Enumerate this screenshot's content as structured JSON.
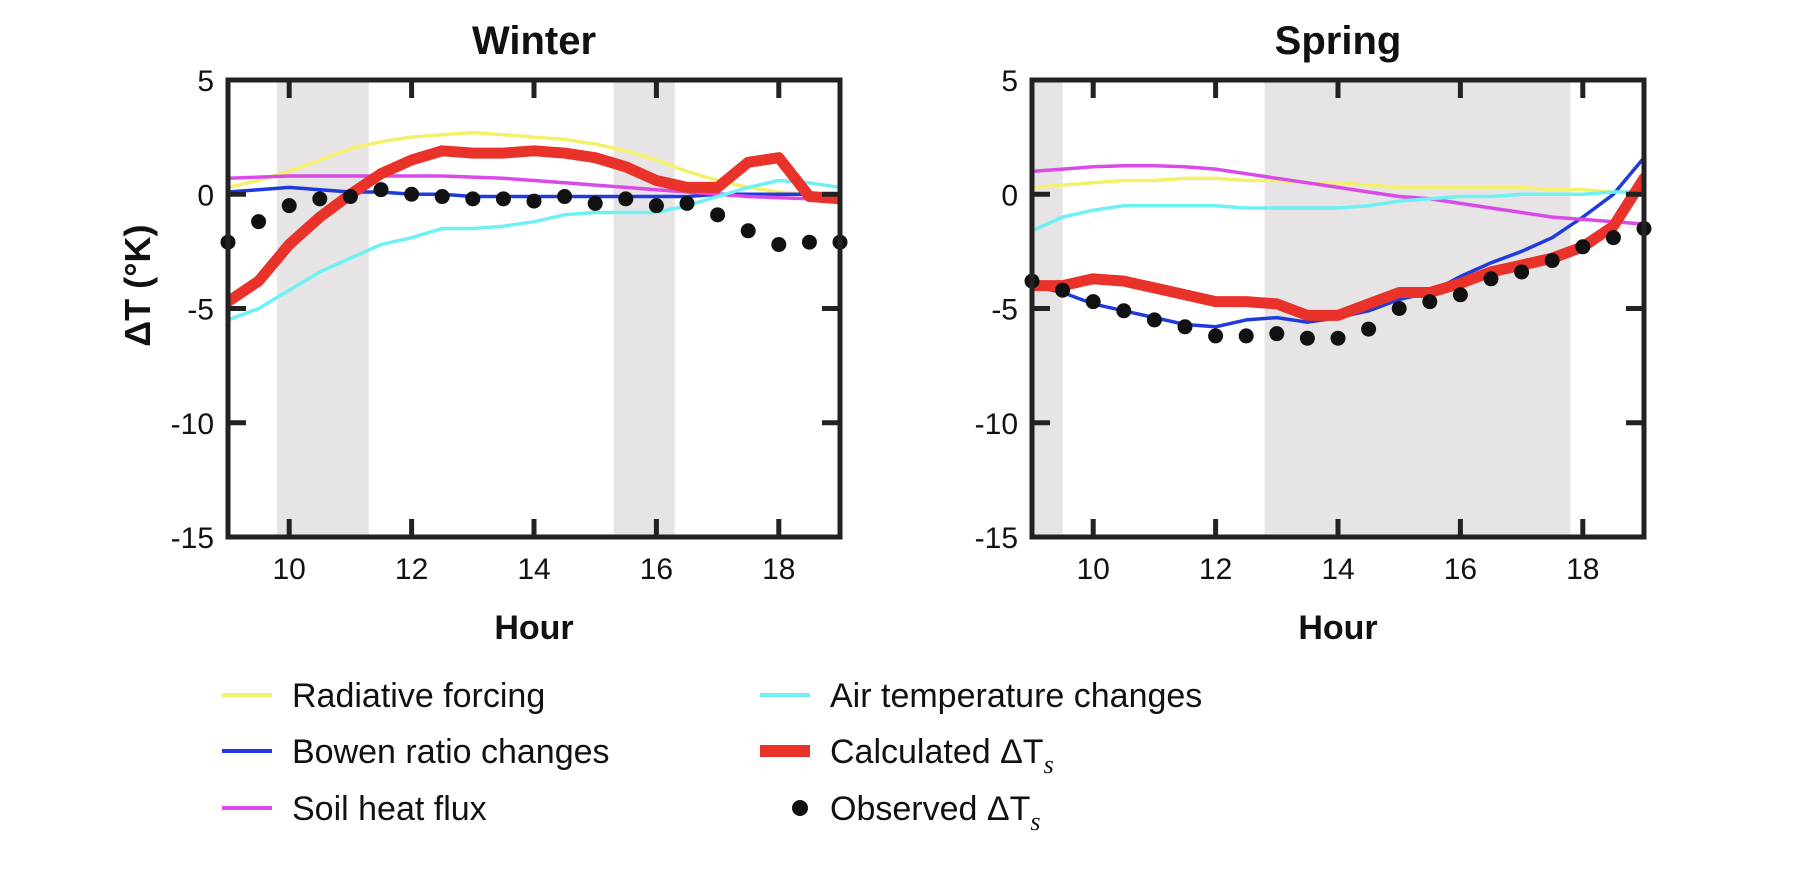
{
  "chart_data": [
    {
      "type": "line",
      "title": "Winter",
      "xlabel": "Hour",
      "ylabel": "ΔT (°K)",
      "xlim": [
        9,
        19
      ],
      "ylim": [
        -15,
        5
      ],
      "xticks": [
        10,
        12,
        14,
        16,
        18
      ],
      "yticks": [
        5,
        0,
        -5,
        -10,
        -15
      ],
      "grid": false,
      "shaded_intervals": [
        [
          9.8,
          11.3
        ],
        [
          15.3,
          16.3
        ]
      ],
      "series": [
        {
          "name": "Radiative forcing",
          "color": "#f5f06a",
          "x": [
            9,
            9.5,
            10,
            10.5,
            11,
            11.5,
            12,
            12.5,
            13,
            13.5,
            14,
            14.5,
            15,
            15.5,
            16,
            16.5,
            17,
            17.5,
            18,
            18.5,
            19
          ],
          "y": [
            0.3,
            0.6,
            1.0,
            1.5,
            2.0,
            2.3,
            2.5,
            2.6,
            2.7,
            2.6,
            2.5,
            2.4,
            2.2,
            1.9,
            1.5,
            1.0,
            0.6,
            0.3,
            0.1,
            0.0,
            -0.1
          ]
        },
        {
          "name": "Bowen ratio changes",
          "color": "#1f3be0",
          "x": [
            9,
            9.5,
            10,
            10.5,
            11,
            11.5,
            12,
            12.5,
            13,
            13.5,
            14,
            14.5,
            15,
            15.5,
            16,
            16.5,
            17,
            17.5,
            18,
            18.5,
            19
          ],
          "y": [
            0.1,
            0.2,
            0.3,
            0.2,
            0.1,
            0.1,
            0.0,
            0.0,
            -0.1,
            -0.1,
            -0.1,
            -0.1,
            -0.1,
            -0.1,
            -0.1,
            -0.1,
            0.0,
            0.0,
            0.0,
            0.0,
            0.0
          ]
        },
        {
          "name": "Soil heat flux",
          "color": "#d94ae8",
          "x": [
            9,
            9.5,
            10,
            10.5,
            11,
            11.5,
            12,
            12.5,
            13,
            13.5,
            14,
            14.5,
            15,
            15.5,
            16,
            16.5,
            17,
            17.5,
            18,
            18.5,
            19
          ],
          "y": [
            0.7,
            0.75,
            0.8,
            0.8,
            0.8,
            0.8,
            0.8,
            0.8,
            0.75,
            0.7,
            0.6,
            0.5,
            0.4,
            0.3,
            0.2,
            0.1,
            0.0,
            -0.1,
            -0.15,
            -0.2,
            -0.25
          ]
        },
        {
          "name": "Air temperature changes",
          "color": "#6ff0f5",
          "x": [
            9,
            9.5,
            10,
            10.5,
            11,
            11.5,
            12,
            12.5,
            13,
            13.5,
            14,
            14.5,
            15,
            15.5,
            16,
            16.5,
            17,
            17.5,
            18,
            18.5,
            19
          ],
          "y": [
            -5.5,
            -5.0,
            -4.2,
            -3.4,
            -2.8,
            -2.2,
            -1.9,
            -1.5,
            -1.5,
            -1.4,
            -1.2,
            -0.9,
            -0.8,
            -0.8,
            -0.8,
            -0.5,
            -0.1,
            0.3,
            0.6,
            0.5,
            0.3
          ]
        },
        {
          "name": "Calculated ΔTs",
          "color": "#e8322a",
          "x": [
            9,
            9.5,
            10,
            10.5,
            11,
            11.5,
            12,
            12.5,
            13,
            13.5,
            14,
            14.5,
            15,
            15.5,
            16,
            16.5,
            17,
            17.5,
            18,
            18.5,
            19
          ],
          "y": [
            -4.7,
            -3.8,
            -2.2,
            -1.0,
            0.0,
            0.9,
            1.5,
            1.9,
            1.8,
            1.8,
            1.9,
            1.8,
            1.6,
            1.2,
            0.6,
            0.3,
            0.3,
            1.4,
            1.6,
            -0.1,
            -0.2
          ]
        },
        {
          "name": "Observed ΔTs",
          "color": "#111111",
          "marker": true,
          "x": [
            9,
            9.5,
            10,
            10.5,
            11,
            11.5,
            12,
            12.5,
            13,
            13.5,
            14,
            14.5,
            15,
            15.5,
            16,
            16.5,
            17,
            17.5,
            18,
            18.5,
            19
          ],
          "y": [
            -2.1,
            -1.2,
            -0.5,
            -0.2,
            -0.1,
            0.2,
            0.0,
            -0.1,
            -0.2,
            -0.2,
            -0.3,
            -0.1,
            -0.4,
            -0.2,
            -0.5,
            -0.4,
            -0.9,
            -1.6,
            -2.2,
            -2.1,
            -2.1
          ]
        }
      ]
    },
    {
      "type": "line",
      "title": "Spring",
      "xlabel": "Hour",
      "ylabel": "",
      "xlim": [
        9,
        19
      ],
      "ylim": [
        -15,
        5
      ],
      "xticks": [
        10,
        12,
        14,
        16,
        18
      ],
      "yticks": [
        5,
        0,
        -5,
        -10,
        -15
      ],
      "grid": false,
      "shaded_intervals": [
        [
          9,
          9.5
        ],
        [
          12.8,
          17.8
        ]
      ],
      "series": [
        {
          "name": "Radiative forcing",
          "color": "#f5f06a",
          "x": [
            9,
            9.5,
            10,
            10.5,
            11,
            11.5,
            12,
            12.5,
            13,
            13.5,
            14,
            14.5,
            15,
            15.5,
            16,
            16.5,
            17,
            17.5,
            18,
            18.5,
            19
          ],
          "y": [
            0.3,
            0.4,
            0.5,
            0.6,
            0.6,
            0.7,
            0.7,
            0.6,
            0.6,
            0.5,
            0.5,
            0.4,
            0.3,
            0.3,
            0.3,
            0.3,
            0.3,
            0.2,
            0.2,
            0.1,
            0.1
          ]
        },
        {
          "name": "Bowen ratio changes",
          "color": "#1f3be0",
          "x": [
            9,
            9.5,
            10,
            10.5,
            11,
            11.5,
            12,
            12.5,
            13,
            13.5,
            14,
            14.5,
            15,
            15.5,
            16,
            16.5,
            17,
            17.5,
            18,
            18.5,
            19
          ],
          "y": [
            -4.0,
            -4.3,
            -4.8,
            -5.1,
            -5.4,
            -5.7,
            -5.8,
            -5.5,
            -5.4,
            -5.6,
            -5.4,
            -5.1,
            -4.6,
            -4.3,
            -3.6,
            -3.0,
            -2.5,
            -1.9,
            -1.0,
            0.0,
            1.6
          ]
        },
        {
          "name": "Soil heat flux",
          "color": "#d94ae8",
          "x": [
            9,
            9.5,
            10,
            10.5,
            11,
            11.5,
            12,
            12.5,
            13,
            13.5,
            14,
            14.5,
            15,
            15.5,
            16,
            16.5,
            17,
            17.5,
            18,
            18.5,
            19
          ],
          "y": [
            1.0,
            1.1,
            1.2,
            1.25,
            1.25,
            1.2,
            1.1,
            0.9,
            0.7,
            0.5,
            0.3,
            0.1,
            -0.1,
            -0.2,
            -0.4,
            -0.6,
            -0.8,
            -1.0,
            -1.1,
            -1.2,
            -1.3
          ]
        },
        {
          "name": "Air temperature changes",
          "color": "#6ff0f5",
          "x": [
            9,
            9.5,
            10,
            10.5,
            11,
            11.5,
            12,
            12.5,
            13,
            13.5,
            14,
            14.5,
            15,
            15.5,
            16,
            16.5,
            17,
            17.5,
            18,
            18.5,
            19
          ],
          "y": [
            -1.6,
            -1.0,
            -0.7,
            -0.5,
            -0.5,
            -0.5,
            -0.5,
            -0.6,
            -0.6,
            -0.6,
            -0.6,
            -0.5,
            -0.3,
            -0.2,
            -0.1,
            -0.1,
            0.0,
            0.0,
            0.0,
            0.1,
            0.1
          ]
        },
        {
          "name": "Calculated ΔTs",
          "color": "#e8322a",
          "x": [
            9,
            9.5,
            10,
            10.5,
            11,
            11.5,
            12,
            12.5,
            13,
            13.5,
            14,
            14.5,
            15,
            15.5,
            16,
            16.5,
            17,
            17.5,
            18,
            18.5,
            19
          ],
          "y": [
            -4.0,
            -4.0,
            -3.7,
            -3.8,
            -4.1,
            -4.4,
            -4.7,
            -4.7,
            -4.8,
            -5.3,
            -5.3,
            -4.8,
            -4.3,
            -4.3,
            -3.9,
            -3.4,
            -3.1,
            -2.8,
            -2.3,
            -1.4,
            0.7
          ]
        },
        {
          "name": "Observed ΔTs",
          "color": "#111111",
          "marker": true,
          "x": [
            9,
            9.5,
            10,
            10.5,
            11,
            11.5,
            12,
            12.5,
            13,
            13.5,
            14,
            14.5,
            15,
            15.5,
            16,
            16.5,
            17,
            17.5,
            18,
            18.5,
            19
          ],
          "y": [
            -3.8,
            -4.2,
            -4.7,
            -5.1,
            -5.5,
            -5.8,
            -6.2,
            -6.2,
            -6.1,
            -6.3,
            -6.3,
            -5.9,
            -5.0,
            -4.7,
            -4.4,
            -3.7,
            -3.4,
            -2.9,
            -2.3,
            -1.9,
            -1.5
          ]
        }
      ]
    }
  ],
  "legend": {
    "placement": "bottom",
    "items": [
      {
        "label": "Radiative forcing",
        "color": "#f5f06a",
        "style": "line"
      },
      {
        "label": "Bowen ratio changes",
        "color": "#1f3be0",
        "style": "line"
      },
      {
        "label": "Soil heat flux",
        "color": "#d94ae8",
        "style": "line"
      },
      {
        "label": "Air temperature changes",
        "color": "#6ff0f5",
        "style": "line"
      },
      {
        "label": "Calculated ΔT",
        "subscript": "s",
        "color": "#e8322a",
        "style": "thick-line"
      },
      {
        "label": "Observed ΔT",
        "subscript": "s",
        "color": "#111111",
        "style": "dot"
      }
    ]
  },
  "colors": {
    "shade": "#e6e4e4",
    "axis": "#222222"
  }
}
